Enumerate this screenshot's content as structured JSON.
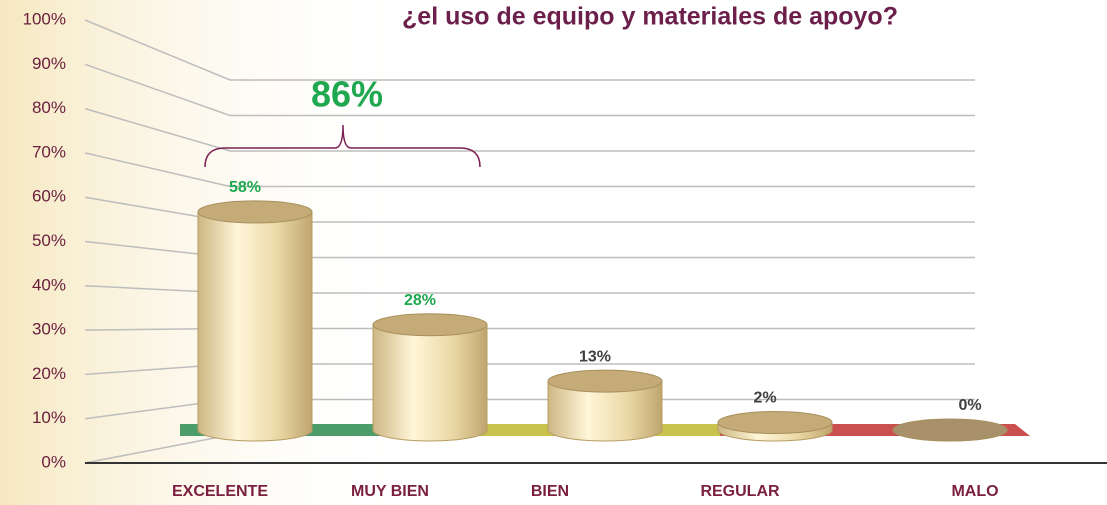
{
  "chart_data": {
    "type": "bar3d",
    "title": "¿el uso de equipo y materiales de apoyo?",
    "categories": [
      "EXCELENTE",
      "MUY BIEN",
      "BIEN",
      "REGULAR",
      "MALO"
    ],
    "values": [
      58,
      28,
      13,
      2,
      0
    ],
    "value_labels": [
      "58%",
      "28%",
      "13%",
      "2%",
      "0%"
    ],
    "value_label_colors": [
      "#1fa84f",
      "#1fa84f",
      "#404040",
      "#404040",
      "#404040"
    ],
    "color": "#ecdcae",
    "ylim": [
      0,
      100
    ],
    "yticks": [
      {
        "value": 0,
        "label": "0%"
      },
      {
        "value": 10,
        "label": "10%"
      },
      {
        "value": 20,
        "label": "20%"
      },
      {
        "value": 30,
        "label": "30%"
      },
      {
        "value": 40,
        "label": "40%"
      },
      {
        "value": 50,
        "label": "50%"
      },
      {
        "value": 60,
        "label": "60%"
      },
      {
        "value": 70,
        "label": "70%"
      },
      {
        "value": 80,
        "label": "80%"
      },
      {
        "value": 90,
        "label": "90%"
      },
      {
        "value": 100,
        "label": "100%"
      }
    ],
    "grid": true,
    "annotation": "86%"
  }
}
